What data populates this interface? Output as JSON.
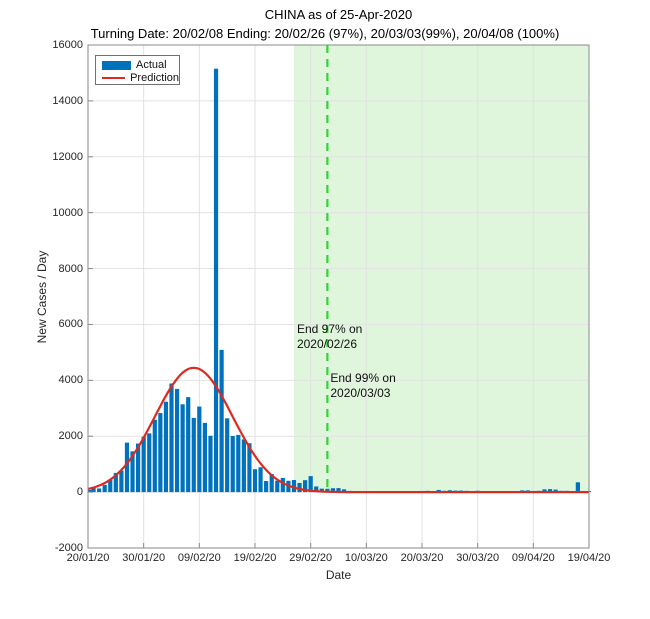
{
  "title": "CHINA as of 25-Apr-2020",
  "subtitle": "Turning Date: 20/02/08  Ending: 20/02/26 (97%), 20/03/03(99%), 20/04/08 (100%)",
  "legend": {
    "items": [
      {
        "label": "Actual",
        "type": "bar"
      },
      {
        "label": "Prediction",
        "type": "line"
      }
    ]
  },
  "annotations": [
    {
      "line1": "End 97% on",
      "line2": "2020/02/26",
      "day": 37,
      "value": 6100
    },
    {
      "line1": "End 99% on",
      "line2": "2020/03/03",
      "day": 43,
      "value": 4350
    }
  ],
  "colors": {
    "actual_bar": "#0072BD",
    "prediction_line": "#DC2A20",
    "dashed_line": "#35D435",
    "shaded_region": "#DFF5DC",
    "grid": "#E2E2E2",
    "axis_box": "#8A8A8A",
    "tick_text": "#262626"
  },
  "chart_data": {
    "type": "bar",
    "title": "CHINA as of 25-Apr-2020",
    "xlabel": "Date",
    "ylabel": "New Cases / Day",
    "ylim": [
      -2000,
      16000
    ],
    "y_tick_values": [
      -2000,
      0,
      2000,
      4000,
      6000,
      8000,
      10000,
      12000,
      14000,
      16000
    ],
    "y_tick_labels": [
      "-2000",
      "0",
      "2000",
      "4000",
      "6000",
      "8000",
      "10000",
      "12000",
      "14000",
      "16000"
    ],
    "x_tick_days": [
      0,
      10,
      20,
      30,
      40,
      50,
      60,
      70,
      80,
      90
    ],
    "x_tick_labels": [
      "20/01/20",
      "30/01/20",
      "09/02/20",
      "19/02/20",
      "29/02/20",
      "10/03/20",
      "20/03/20",
      "30/03/20",
      "09/04/20",
      "19/04/20"
    ],
    "start_date": "2020-01-20",
    "grid": true,
    "legend_position": "top-left",
    "series": [
      {
        "name": "Actual",
        "type": "bar",
        "values_by_day": [
          77,
          149,
          131,
          259,
          444,
          688,
          769,
          1771,
          1459,
          1737,
          1982,
          2102,
          2590,
          2829,
          3235,
          3887,
          3694,
          3143,
          3399,
          2656,
          3062,
          2478,
          2015,
          15152,
          5090,
          2641,
          2009,
          2048,
          1886,
          1749,
          820,
          889,
          397,
          648,
          409,
          508,
          406,
          433,
          327,
          427,
          573,
          202,
          125,
          119,
          139,
          143,
          99,
          44,
          40,
          19,
          24,
          15,
          8,
          11,
          20,
          16,
          21,
          13,
          34,
          39,
          41,
          46,
          39,
          78,
          47,
          67,
          55,
          54,
          45,
          31,
          48,
          36,
          35,
          31,
          19,
          30,
          39,
          32,
          62,
          63,
          42,
          46,
          99,
          108,
          89,
          46,
          46,
          26,
          352,
          16,
          12
        ]
      },
      {
        "name": "Prediction",
        "type": "line",
        "model": "gaussian",
        "peak_value": 4450,
        "peak_day": 19,
        "sigma_days": 7
      }
    ],
    "turning_date": "20/02/08",
    "endings": [
      {
        "percent": "97%",
        "date": "20/02/26"
      },
      {
        "percent": "99%",
        "date": "20/03/03"
      },
      {
        "percent": "100%",
        "date": "20/04/08"
      }
    ],
    "shaded_region_start_day": 37,
    "dashed_line_day": 43
  }
}
